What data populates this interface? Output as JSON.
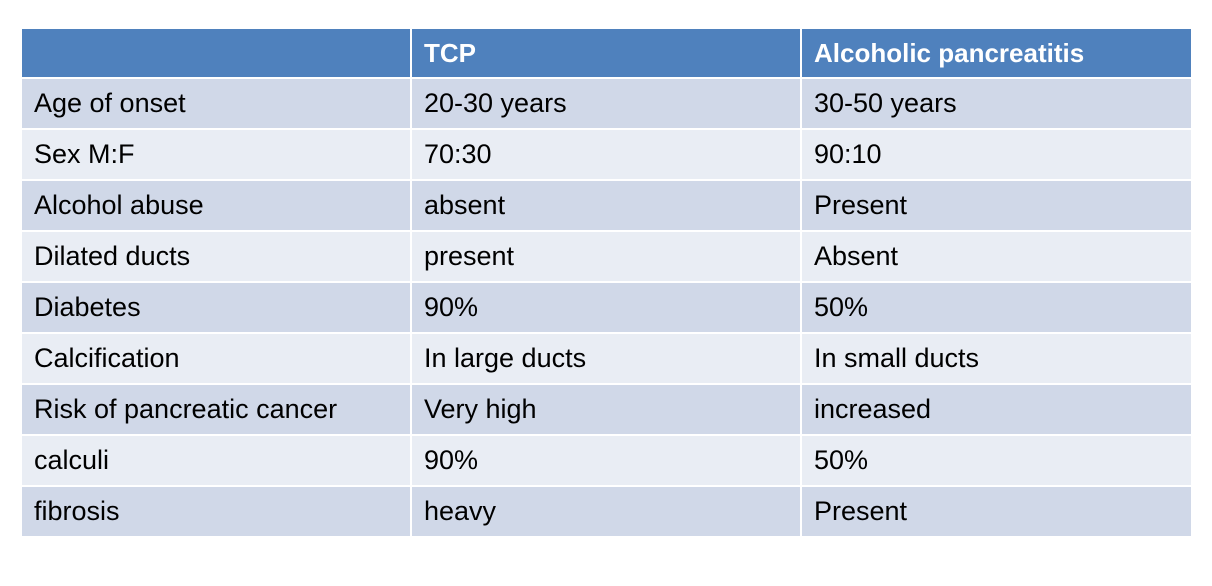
{
  "table": {
    "headers": [
      "",
      "TCP",
      "Alcoholic pancreatitis"
    ],
    "rows": [
      [
        "Age of onset",
        "20-30 years",
        "30-50 years"
      ],
      [
        "Sex M:F",
        "70:30",
        "90:10"
      ],
      [
        "Alcohol abuse",
        "absent",
        "Present"
      ],
      [
        "Dilated ducts",
        "present",
        "Absent"
      ],
      [
        "Diabetes",
        "90%",
        "50%"
      ],
      [
        "Calcification",
        "In large ducts",
        "In small ducts"
      ],
      [
        "Risk of pancreatic cancer",
        "Very high",
        "increased"
      ],
      [
        "calculi",
        "90%",
        "50%"
      ],
      [
        "fibrosis",
        "heavy",
        "Present"
      ]
    ]
  },
  "colors": {
    "header_bg": "#4f81bd",
    "row_odd_bg": "#d0d8e8",
    "row_even_bg": "#e9edf4",
    "header_text": "#ffffff"
  }
}
